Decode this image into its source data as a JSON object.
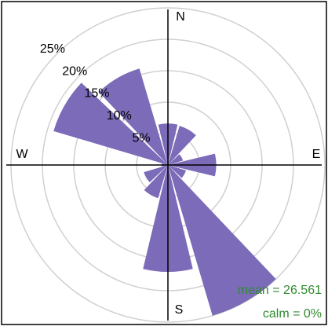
{
  "chart_data": {
    "type": "wind_rose",
    "x": [
      0,
      30,
      60,
      90,
      120,
      150,
      180,
      210,
      240,
      270,
      300,
      330
    ],
    "values": [
      6.6,
      6.5,
      2.5,
      7.7,
      3,
      25,
      17,
      5.5,
      4,
      1,
      19,
      16
    ],
    "color": "#7b6bb8",
    "rlim": [
      0,
      25
    ],
    "rticks": [
      {
        "value": 5,
        "label": "5%"
      },
      {
        "value": 10,
        "label": "10%"
      },
      {
        "value": 15,
        "label": "15%"
      },
      {
        "value": 20,
        "label": "20%"
      },
      {
        "value": 25,
        "label": "25%"
      }
    ],
    "directions": [
      "N",
      "E",
      "S",
      "W"
    ],
    "annotations": [
      "mean = 26.561",
      "calm = 0%"
    ],
    "annotation_color": "#2e8b2e",
    "grid": true
  }
}
